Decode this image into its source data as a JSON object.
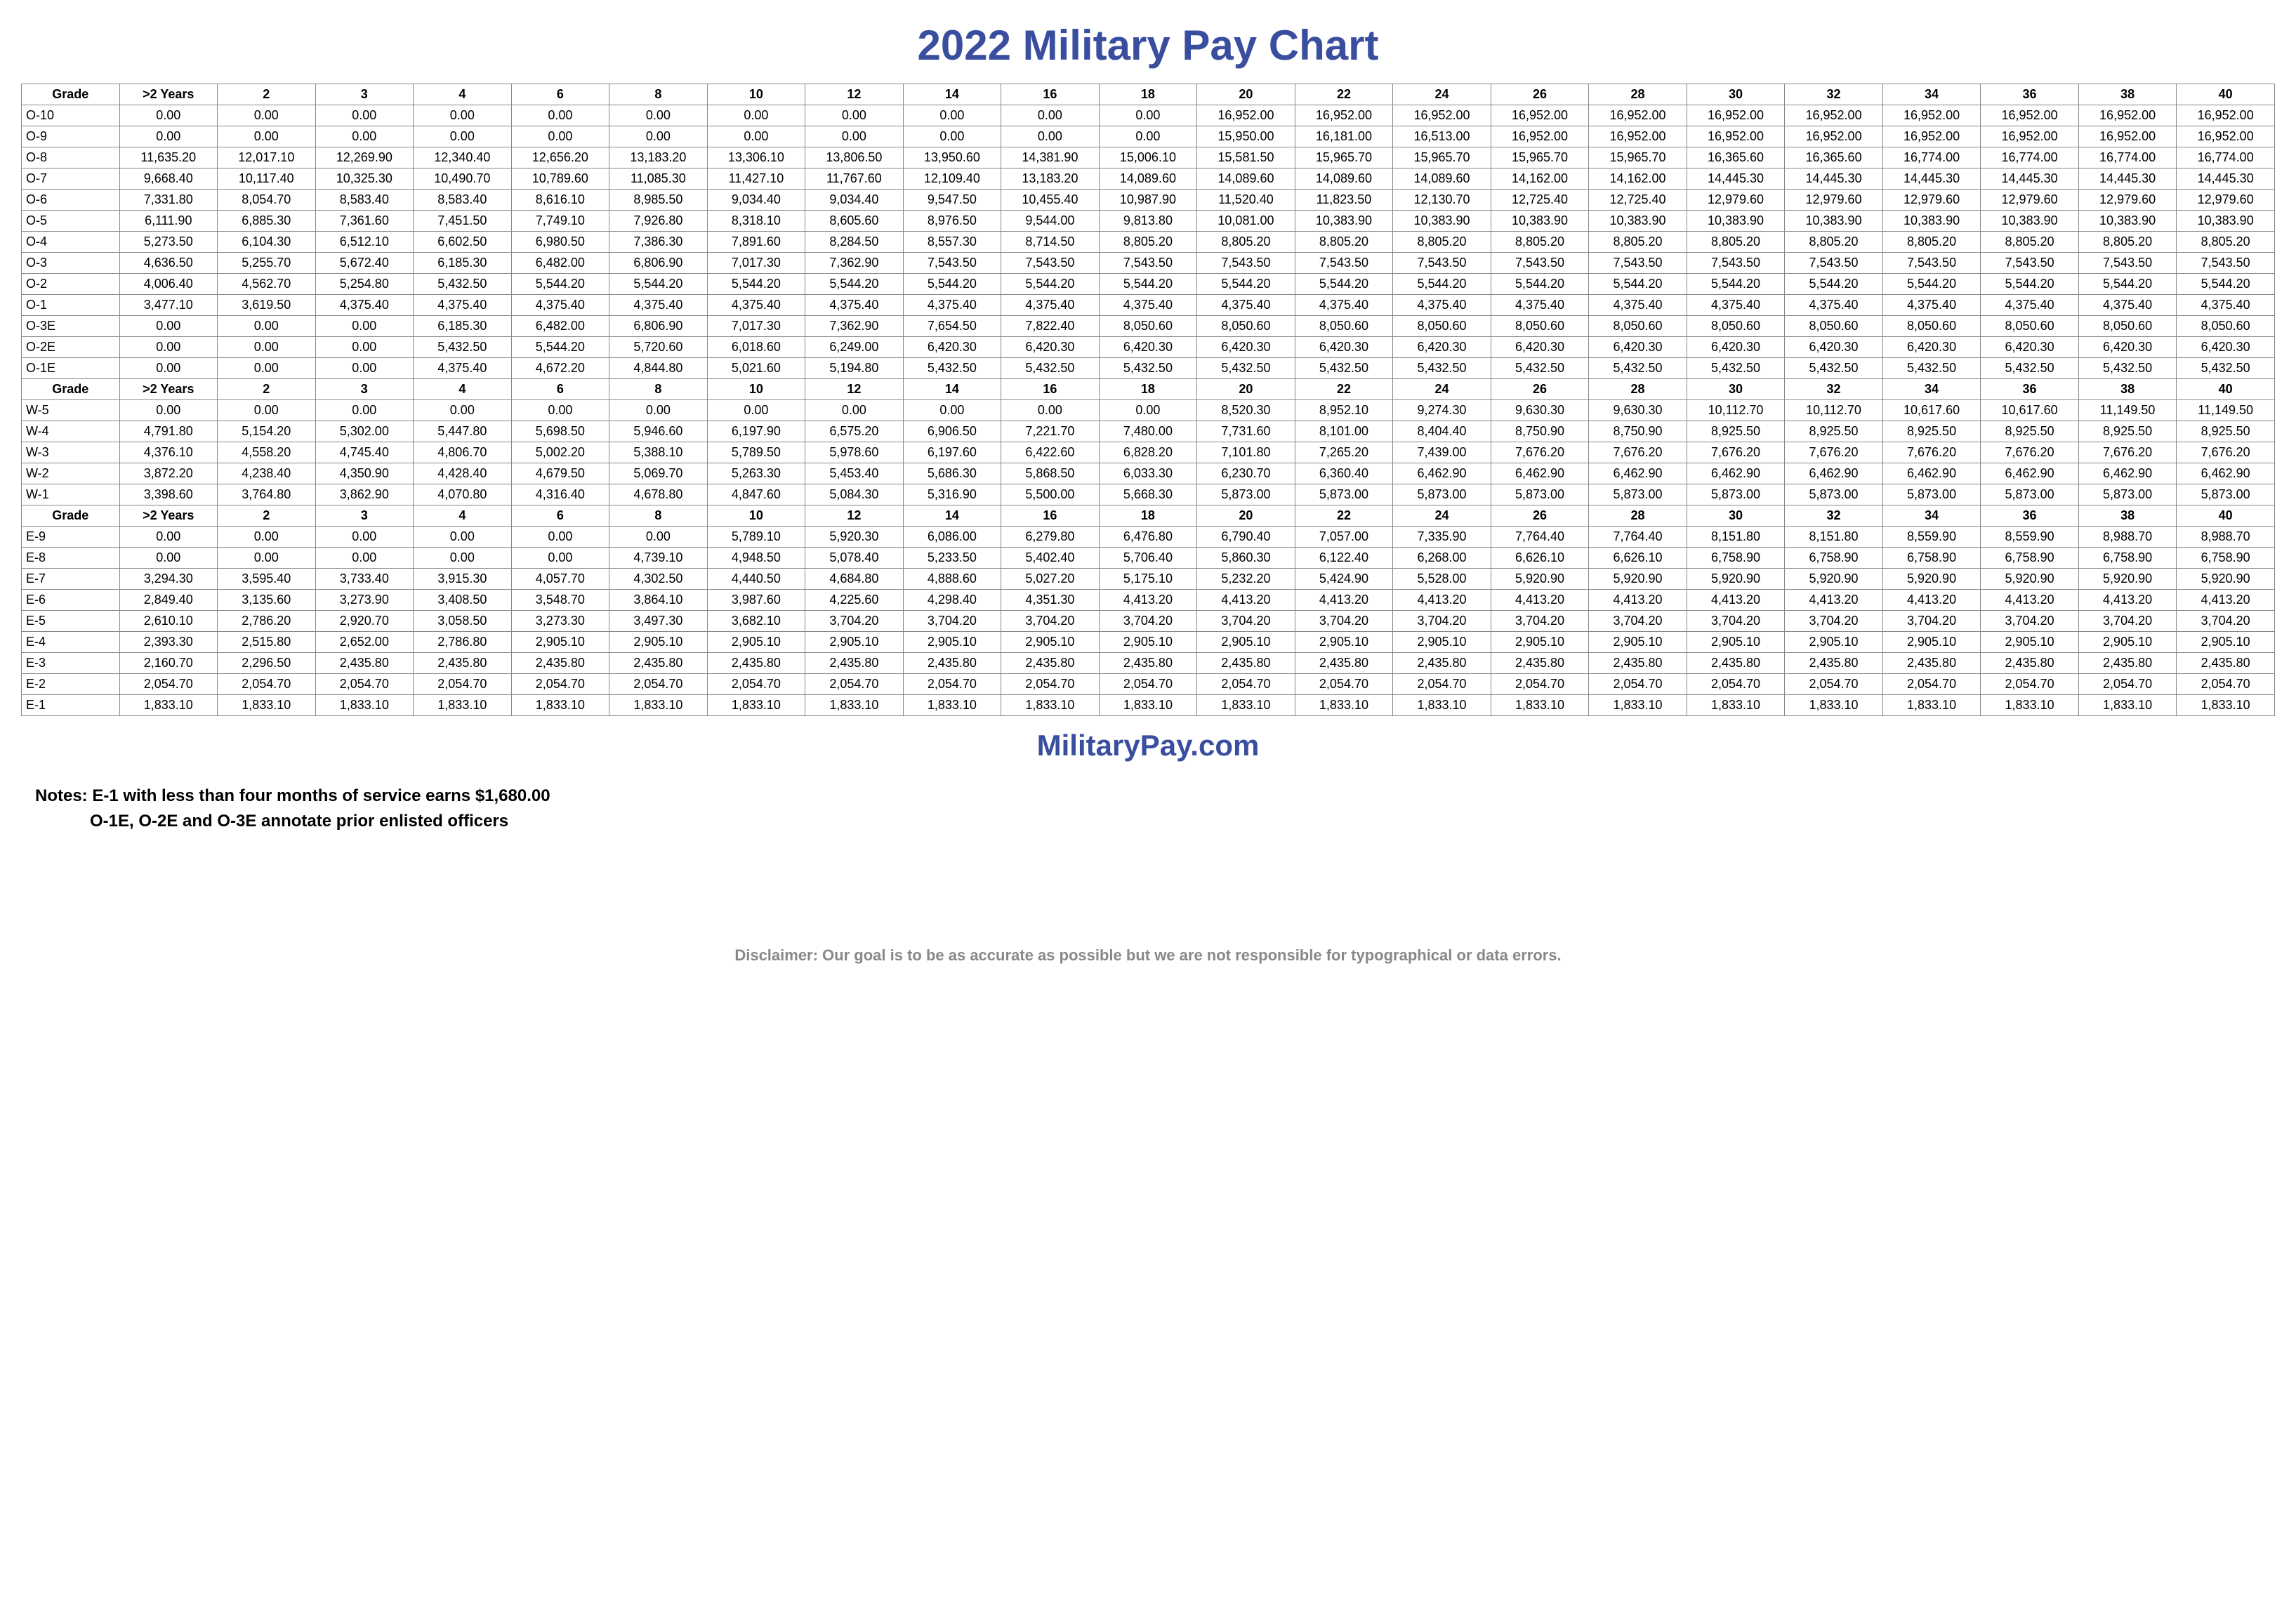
{
  "title": "2022 Military Pay Chart",
  "site": "MilitaryPay.com",
  "notes_label": "Notes:",
  "note1": "E-1 with less than four months of service earns $1,680.00",
  "note2": "O-1E, O-2E and O-3E annotate prior enlisted officers",
  "disclaimer": "Disclaimer: Our goal is to be as accurate as possible but we are not responsible for typographical or data errors.",
  "headers": [
    "Grade",
    ">2 Years",
    "2",
    "3",
    "4",
    "6",
    "8",
    "10",
    "12",
    "14",
    "16",
    "18",
    "20",
    "22",
    "24",
    "26",
    "28",
    "30",
    "32",
    "34",
    "36",
    "38",
    "40"
  ],
  "sections": [
    {
      "rows": [
        {
          "grade": "O-10",
          "v": [
            "0.00",
            "0.00",
            "0.00",
            "0.00",
            "0.00",
            "0.00",
            "0.00",
            "0.00",
            "0.00",
            "0.00",
            "0.00",
            "16,952.00",
            "16,952.00",
            "16,952.00",
            "16,952.00",
            "16,952.00",
            "16,952.00",
            "16,952.00",
            "16,952.00",
            "16,952.00",
            "16,952.00",
            "16,952.00"
          ]
        },
        {
          "grade": "O-9",
          "v": [
            "0.00",
            "0.00",
            "0.00",
            "0.00",
            "0.00",
            "0.00",
            "0.00",
            "0.00",
            "0.00",
            "0.00",
            "0.00",
            "15,950.00",
            "16,181.00",
            "16,513.00",
            "16,952.00",
            "16,952.00",
            "16,952.00",
            "16,952.00",
            "16,952.00",
            "16,952.00",
            "16,952.00",
            "16,952.00"
          ]
        },
        {
          "grade": "O-8",
          "v": [
            "11,635.20",
            "12,017.10",
            "12,269.90",
            "12,340.40",
            "12,656.20",
            "13,183.20",
            "13,306.10",
            "13,806.50",
            "13,950.60",
            "14,381.90",
            "15,006.10",
            "15,581.50",
            "15,965.70",
            "15,965.70",
            "15,965.70",
            "15,965.70",
            "16,365.60",
            "16,365.60",
            "16,774.00",
            "16,774.00",
            "16,774.00",
            "16,774.00"
          ]
        },
        {
          "grade": "O-7",
          "v": [
            "9,668.40",
            "10,117.40",
            "10,325.30",
            "10,490.70",
            "10,789.60",
            "11,085.30",
            "11,427.10",
            "11,767.60",
            "12,109.40",
            "13,183.20",
            "14,089.60",
            "14,089.60",
            "14,089.60",
            "14,089.60",
            "14,162.00",
            "14,162.00",
            "14,445.30",
            "14,445.30",
            "14,445.30",
            "14,445.30",
            "14,445.30",
            "14,445.30"
          ]
        },
        {
          "grade": "O-6",
          "v": [
            "7,331.80",
            "8,054.70",
            "8,583.40",
            "8,583.40",
            "8,616.10",
            "8,985.50",
            "9,034.40",
            "9,034.40",
            "9,547.50",
            "10,455.40",
            "10,987.90",
            "11,520.40",
            "11,823.50",
            "12,130.70",
            "12,725.40",
            "12,725.40",
            "12,979.60",
            "12,979.60",
            "12,979.60",
            "12,979.60",
            "12,979.60",
            "12,979.60"
          ]
        },
        {
          "grade": "O-5",
          "v": [
            "6,111.90",
            "6,885.30",
            "7,361.60",
            "7,451.50",
            "7,749.10",
            "7,926.80",
            "8,318.10",
            "8,605.60",
            "8,976.50",
            "9,544.00",
            "9,813.80",
            "10,081.00",
            "10,383.90",
            "10,383.90",
            "10,383.90",
            "10,383.90",
            "10,383.90",
            "10,383.90",
            "10,383.90",
            "10,383.90",
            "10,383.90",
            "10,383.90"
          ]
        },
        {
          "grade": "O-4",
          "v": [
            "5,273.50",
            "6,104.30",
            "6,512.10",
            "6,602.50",
            "6,980.50",
            "7,386.30",
            "7,891.60",
            "8,284.50",
            "8,557.30",
            "8,714.50",
            "8,805.20",
            "8,805.20",
            "8,805.20",
            "8,805.20",
            "8,805.20",
            "8,805.20",
            "8,805.20",
            "8,805.20",
            "8,805.20",
            "8,805.20",
            "8,805.20",
            "8,805.20"
          ]
        },
        {
          "grade": "O-3",
          "v": [
            "4,636.50",
            "5,255.70",
            "5,672.40",
            "6,185.30",
            "6,482.00",
            "6,806.90",
            "7,017.30",
            "7,362.90",
            "7,543.50",
            "7,543.50",
            "7,543.50",
            "7,543.50",
            "7,543.50",
            "7,543.50",
            "7,543.50",
            "7,543.50",
            "7,543.50",
            "7,543.50",
            "7,543.50",
            "7,543.50",
            "7,543.50",
            "7,543.50"
          ]
        },
        {
          "grade": "O-2",
          "v": [
            "4,006.40",
            "4,562.70",
            "5,254.80",
            "5,432.50",
            "5,544.20",
            "5,544.20",
            "5,544.20",
            "5,544.20",
            "5,544.20",
            "5,544.20",
            "5,544.20",
            "5,544.20",
            "5,544.20",
            "5,544.20",
            "5,544.20",
            "5,544.20",
            "5,544.20",
            "5,544.20",
            "5,544.20",
            "5,544.20",
            "5,544.20",
            "5,544.20"
          ]
        },
        {
          "grade": "O-1",
          "v": [
            "3,477.10",
            "3,619.50",
            "4,375.40",
            "4,375.40",
            "4,375.40",
            "4,375.40",
            "4,375.40",
            "4,375.40",
            "4,375.40",
            "4,375.40",
            "4,375.40",
            "4,375.40",
            "4,375.40",
            "4,375.40",
            "4,375.40",
            "4,375.40",
            "4,375.40",
            "4,375.40",
            "4,375.40",
            "4,375.40",
            "4,375.40",
            "4,375.40"
          ]
        },
        {
          "grade": "O-3E",
          "v": [
            "0.00",
            "0.00",
            "0.00",
            "6,185.30",
            "6,482.00",
            "6,806.90",
            "7,017.30",
            "7,362.90",
            "7,654.50",
            "7,822.40",
            "8,050.60",
            "8,050.60",
            "8,050.60",
            "8,050.60",
            "8,050.60",
            "8,050.60",
            "8,050.60",
            "8,050.60",
            "8,050.60",
            "8,050.60",
            "8,050.60",
            "8,050.60"
          ]
        },
        {
          "grade": "O-2E",
          "v": [
            "0.00",
            "0.00",
            "0.00",
            "5,432.50",
            "5,544.20",
            "5,720.60",
            "6,018.60",
            "6,249.00",
            "6,420.30",
            "6,420.30",
            "6,420.30",
            "6,420.30",
            "6,420.30",
            "6,420.30",
            "6,420.30",
            "6,420.30",
            "6,420.30",
            "6,420.30",
            "6,420.30",
            "6,420.30",
            "6,420.30",
            "6,420.30"
          ]
        },
        {
          "grade": "O-1E",
          "v": [
            "0.00",
            "0.00",
            "0.00",
            "4,375.40",
            "4,672.20",
            "4,844.80",
            "5,021.60",
            "5,194.80",
            "5,432.50",
            "5,432.50",
            "5,432.50",
            "5,432.50",
            "5,432.50",
            "5,432.50",
            "5,432.50",
            "5,432.50",
            "5,432.50",
            "5,432.50",
            "5,432.50",
            "5,432.50",
            "5,432.50",
            "5,432.50"
          ]
        }
      ]
    },
    {
      "rows": [
        {
          "grade": "W-5",
          "v": [
            "0.00",
            "0.00",
            "0.00",
            "0.00",
            "0.00",
            "0.00",
            "0.00",
            "0.00",
            "0.00",
            "0.00",
            "0.00",
            "8,520.30",
            "8,952.10",
            "9,274.30",
            "9,630.30",
            "9,630.30",
            "10,112.70",
            "10,112.70",
            "10,617.60",
            "10,617.60",
            "11,149.50",
            "11,149.50"
          ]
        },
        {
          "grade": "W-4",
          "v": [
            "4,791.80",
            "5,154.20",
            "5,302.00",
            "5,447.80",
            "5,698.50",
            "5,946.60",
            "6,197.90",
            "6,575.20",
            "6,906.50",
            "7,221.70",
            "7,480.00",
            "7,731.60",
            "8,101.00",
            "8,404.40",
            "8,750.90",
            "8,750.90",
            "8,925.50",
            "8,925.50",
            "8,925.50",
            "8,925.50",
            "8,925.50",
            "8,925.50"
          ]
        },
        {
          "grade": "W-3",
          "v": [
            "4,376.10",
            "4,558.20",
            "4,745.40",
            "4,806.70",
            "5,002.20",
            "5,388.10",
            "5,789.50",
            "5,978.60",
            "6,197.60",
            "6,422.60",
            "6,828.20",
            "7,101.80",
            "7,265.20",
            "7,439.00",
            "7,676.20",
            "7,676.20",
            "7,676.20",
            "7,676.20",
            "7,676.20",
            "7,676.20",
            "7,676.20",
            "7,676.20"
          ]
        },
        {
          "grade": "W-2",
          "v": [
            "3,872.20",
            "4,238.40",
            "4,350.90",
            "4,428.40",
            "4,679.50",
            "5,069.70",
            "5,263.30",
            "5,453.40",
            "5,686.30",
            "5,868.50",
            "6,033.30",
            "6,230.70",
            "6,360.40",
            "6,462.90",
            "6,462.90",
            "6,462.90",
            "6,462.90",
            "6,462.90",
            "6,462.90",
            "6,462.90",
            "6,462.90",
            "6,462.90"
          ]
        },
        {
          "grade": "W-1",
          "v": [
            "3,398.60",
            "3,764.80",
            "3,862.90",
            "4,070.80",
            "4,316.40",
            "4,678.80",
            "4,847.60",
            "5,084.30",
            "5,316.90",
            "5,500.00",
            "5,668.30",
            "5,873.00",
            "5,873.00",
            "5,873.00",
            "5,873.00",
            "5,873.00",
            "5,873.00",
            "5,873.00",
            "5,873.00",
            "5,873.00",
            "5,873.00",
            "5,873.00"
          ]
        }
      ]
    },
    {
      "rows": [
        {
          "grade": "E-9",
          "v": [
            "0.00",
            "0.00",
            "0.00",
            "0.00",
            "0.00",
            "0.00",
            "5,789.10",
            "5,920.30",
            "6,086.00",
            "6,279.80",
            "6,476.80",
            "6,790.40",
            "7,057.00",
            "7,335.90",
            "7,764.40",
            "7,764.40",
            "8,151.80",
            "8,151.80",
            "8,559.90",
            "8,559.90",
            "8,988.70",
            "8,988.70"
          ]
        },
        {
          "grade": "E-8",
          "v": [
            "0.00",
            "0.00",
            "0.00",
            "0.00",
            "0.00",
            "4,739.10",
            "4,948.50",
            "5,078.40",
            "5,233.50",
            "5,402.40",
            "5,706.40",
            "5,860.30",
            "6,122.40",
            "6,268.00",
            "6,626.10",
            "6,626.10",
            "6,758.90",
            "6,758.90",
            "6,758.90",
            "6,758.90",
            "6,758.90",
            "6,758.90"
          ]
        },
        {
          "grade": "E-7",
          "v": [
            "3,294.30",
            "3,595.40",
            "3,733.40",
            "3,915.30",
            "4,057.70",
            "4,302.50",
            "4,440.50",
            "4,684.80",
            "4,888.60",
            "5,027.20",
            "5,175.10",
            "5,232.20",
            "5,424.90",
            "5,528.00",
            "5,920.90",
            "5,920.90",
            "5,920.90",
            "5,920.90",
            "5,920.90",
            "5,920.90",
            "5,920.90",
            "5,920.90"
          ]
        },
        {
          "grade": "E-6",
          "v": [
            "2,849.40",
            "3,135.60",
            "3,273.90",
            "3,408.50",
            "3,548.70",
            "3,864.10",
            "3,987.60",
            "4,225.60",
            "4,298.40",
            "4,351.30",
            "4,413.20",
            "4,413.20",
            "4,413.20",
            "4,413.20",
            "4,413.20",
            "4,413.20",
            "4,413.20",
            "4,413.20",
            "4,413.20",
            "4,413.20",
            "4,413.20",
            "4,413.20"
          ]
        },
        {
          "grade": "E-5",
          "v": [
            "2,610.10",
            "2,786.20",
            "2,920.70",
            "3,058.50",
            "3,273.30",
            "3,497.30",
            "3,682.10",
            "3,704.20",
            "3,704.20",
            "3,704.20",
            "3,704.20",
            "3,704.20",
            "3,704.20",
            "3,704.20",
            "3,704.20",
            "3,704.20",
            "3,704.20",
            "3,704.20",
            "3,704.20",
            "3,704.20",
            "3,704.20",
            "3,704.20"
          ]
        },
        {
          "grade": "E-4",
          "v": [
            "2,393.30",
            "2,515.80",
            "2,652.00",
            "2,786.80",
            "2,905.10",
            "2,905.10",
            "2,905.10",
            "2,905.10",
            "2,905.10",
            "2,905.10",
            "2,905.10",
            "2,905.10",
            "2,905.10",
            "2,905.10",
            "2,905.10",
            "2,905.10",
            "2,905.10",
            "2,905.10",
            "2,905.10",
            "2,905.10",
            "2,905.10",
            "2,905.10"
          ]
        },
        {
          "grade": "E-3",
          "v": [
            "2,160.70",
            "2,296.50",
            "2,435.80",
            "2,435.80",
            "2,435.80",
            "2,435.80",
            "2,435.80",
            "2,435.80",
            "2,435.80",
            "2,435.80",
            "2,435.80",
            "2,435.80",
            "2,435.80",
            "2,435.80",
            "2,435.80",
            "2,435.80",
            "2,435.80",
            "2,435.80",
            "2,435.80",
            "2,435.80",
            "2,435.80",
            "2,435.80"
          ]
        },
        {
          "grade": "E-2",
          "v": [
            "2,054.70",
            "2,054.70",
            "2,054.70",
            "2,054.70",
            "2,054.70",
            "2,054.70",
            "2,054.70",
            "2,054.70",
            "2,054.70",
            "2,054.70",
            "2,054.70",
            "2,054.70",
            "2,054.70",
            "2,054.70",
            "2,054.70",
            "2,054.70",
            "2,054.70",
            "2,054.70",
            "2,054.70",
            "2,054.70",
            "2,054.70",
            "2,054.70"
          ]
        },
        {
          "grade": "E-1",
          "v": [
            "1,833.10",
            "1,833.10",
            "1,833.10",
            "1,833.10",
            "1,833.10",
            "1,833.10",
            "1,833.10",
            "1,833.10",
            "1,833.10",
            "1,833.10",
            "1,833.10",
            "1,833.10",
            "1,833.10",
            "1,833.10",
            "1,833.10",
            "1,833.10",
            "1,833.10",
            "1,833.10",
            "1,833.10",
            "1,833.10",
            "1,833.10",
            "1,833.10"
          ]
        }
      ]
    }
  ]
}
